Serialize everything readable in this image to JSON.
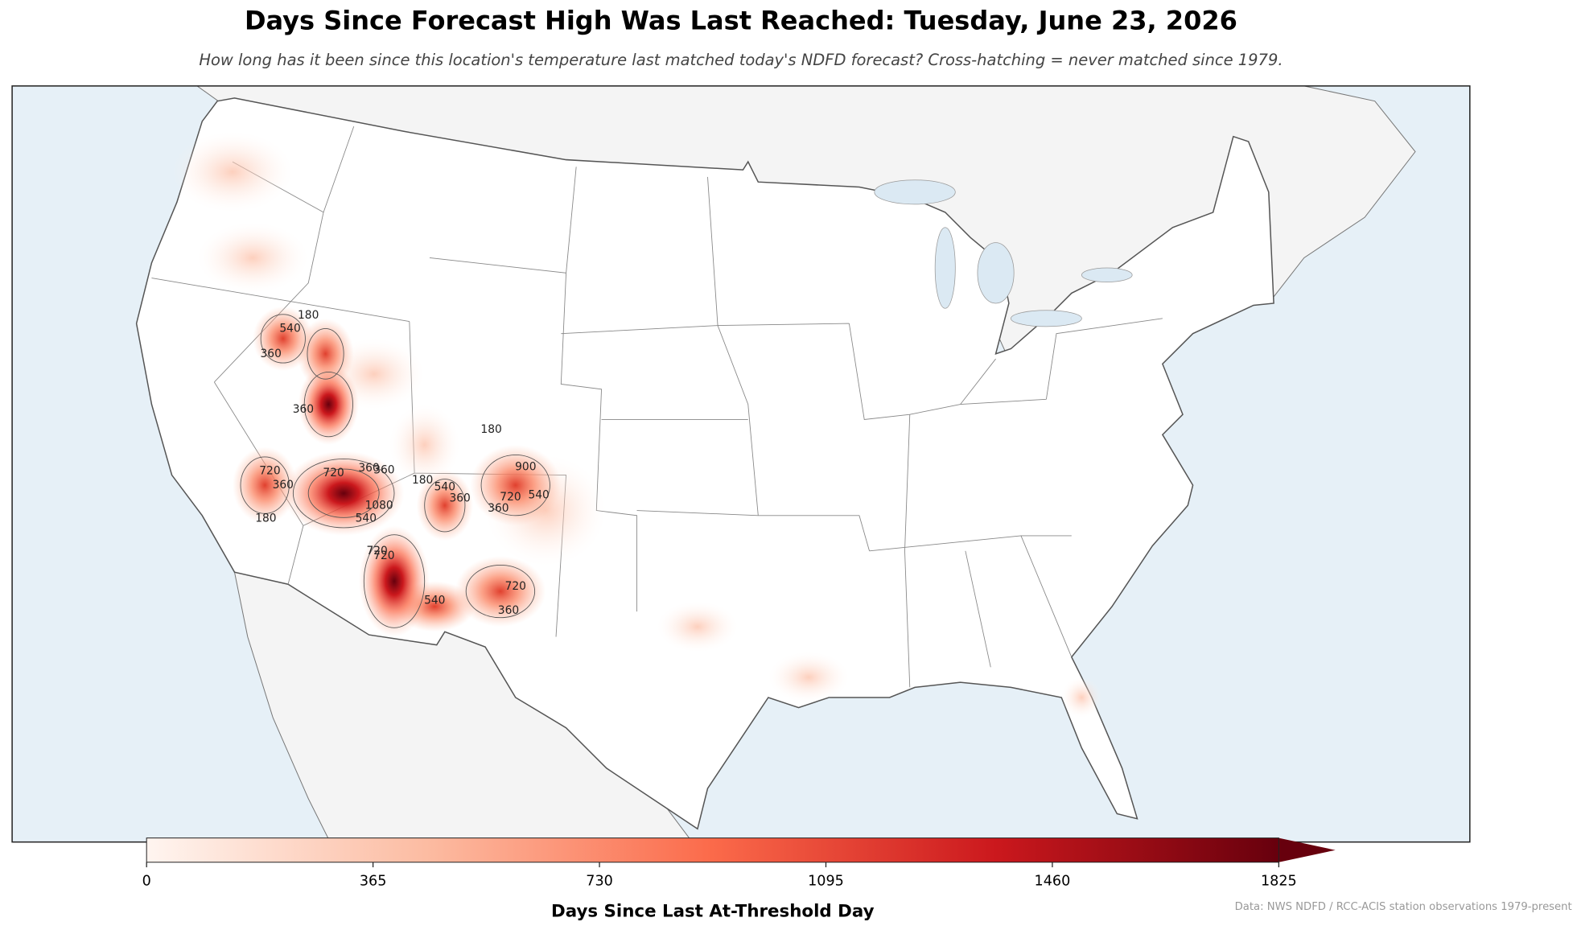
{
  "title": "Days Since Forecast High Was Last Reached: Tuesday, June 23, 2026",
  "subtitle": "How long has it been since this location's temperature last matched today's NDFD forecast? Cross-hatching = never matched since 1979.",
  "colorbar": {
    "label": "Days Since Last At-Threshold Day",
    "clim": [
      0,
      1825
    ],
    "ticks": [
      0,
      365,
      730,
      1095,
      1460,
      1825
    ],
    "colors": [
      "#fff5f0",
      "#fcbba1",
      "#fb6a4a",
      "#cb181d",
      "#67000d"
    ]
  },
  "contour_labels": [
    "180",
    "540",
    "360",
    "360",
    "720",
    "360",
    "720",
    "360",
    "180",
    "720",
    "1080",
    "540",
    "360",
    "180",
    "540",
    "360",
    "180",
    "900",
    "720",
    "360",
    "540",
    "720",
    "540",
    "360",
    "720"
  ],
  "source": "Data: NWS NDFD / RCC-ACIS station observations 1979-present"
}
